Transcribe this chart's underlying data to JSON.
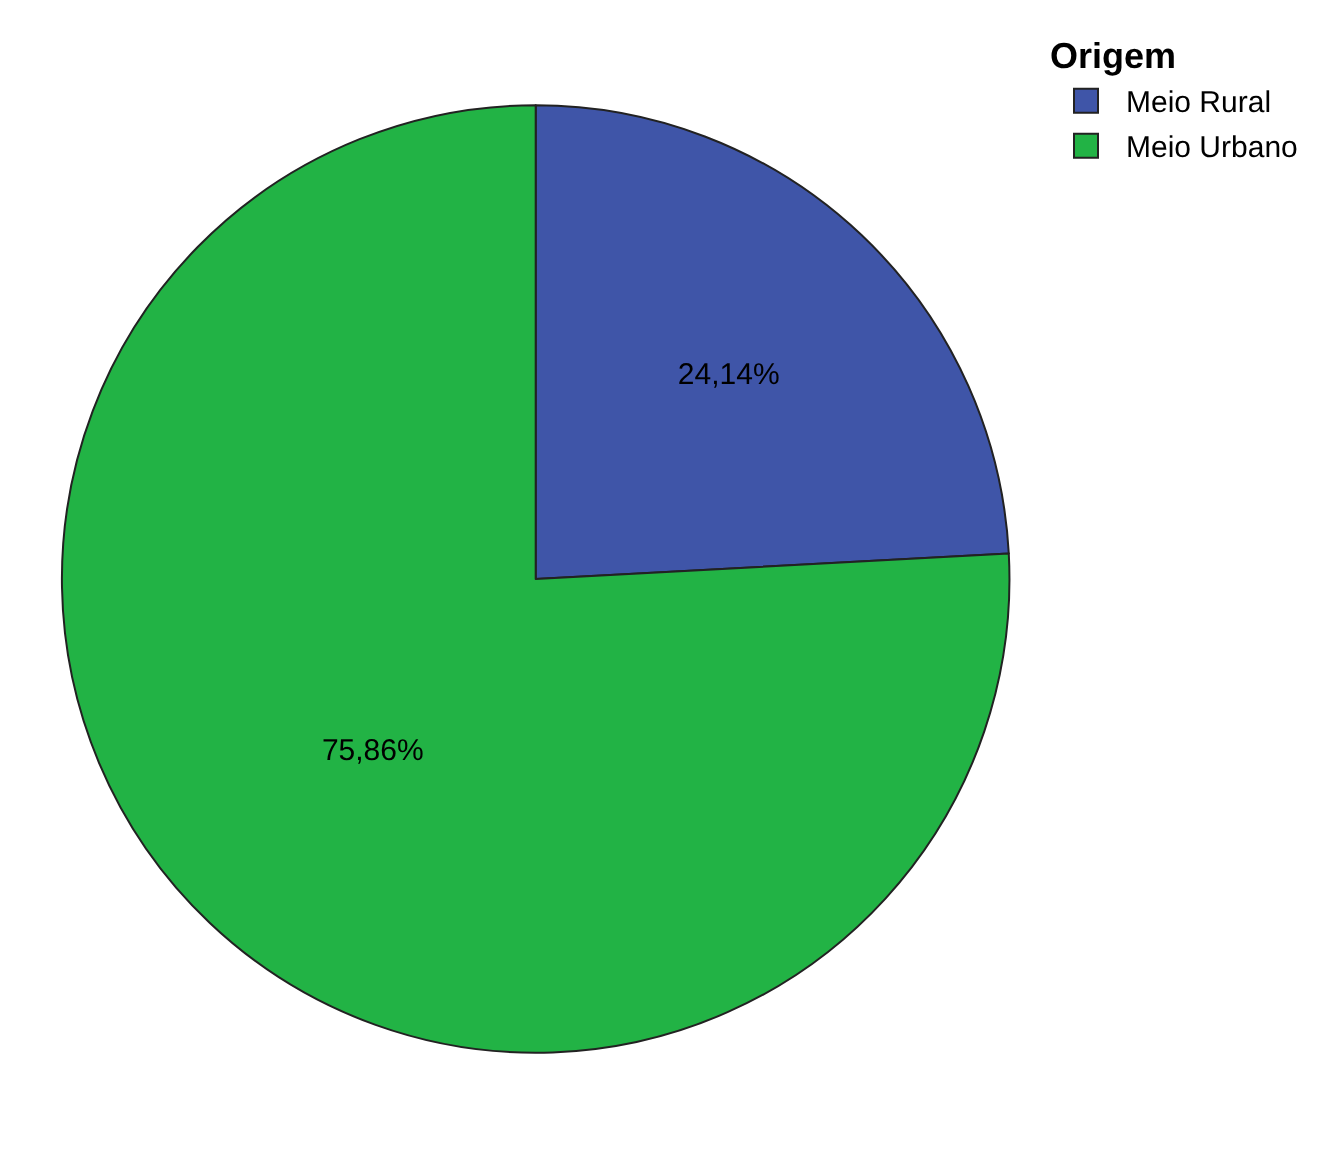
{
  "chart_data": {
    "type": "pie",
    "legend_title": "Origem",
    "categories": [
      "Meio Rural",
      "Meio Urbano"
    ],
    "values": [
      24.14,
      75.86
    ],
    "value_labels": [
      "24,14%",
      "75,86%"
    ],
    "colors": [
      "#3f55a8",
      "#22b345"
    ],
    "legend": "top right"
  }
}
